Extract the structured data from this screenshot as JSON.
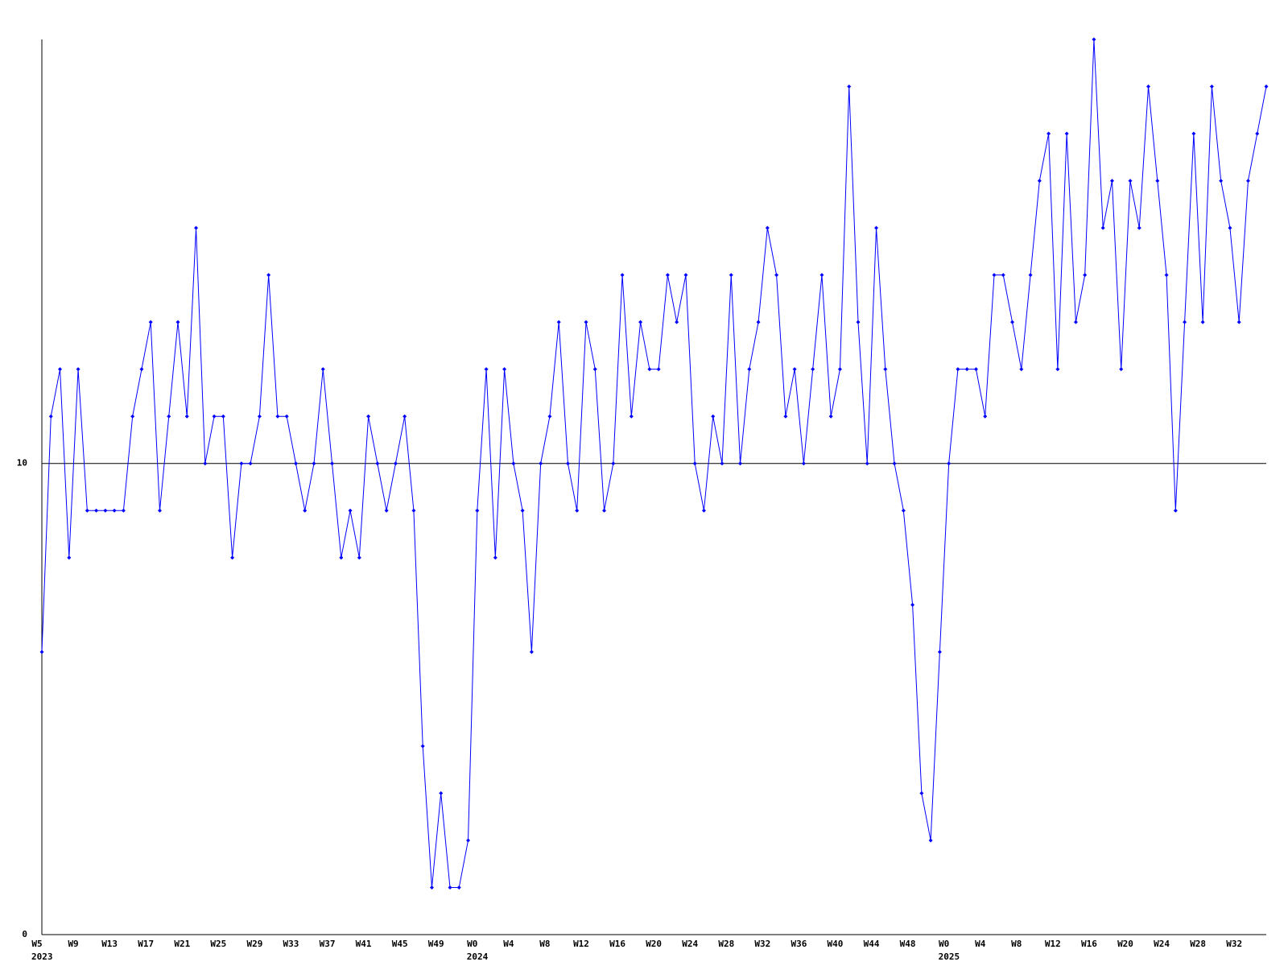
{
  "chart_data": {
    "type": "line",
    "categories": [
      "W5",
      null,
      null,
      null,
      "W9",
      null,
      null,
      null,
      "W13",
      null,
      null,
      null,
      "W17",
      null,
      null,
      null,
      "W21",
      null,
      null,
      null,
      "W25",
      null,
      null,
      null,
      "W29",
      null,
      null,
      null,
      "W33",
      null,
      null,
      null,
      "W37",
      null,
      null,
      null,
      "W41",
      null,
      null,
      null,
      "W45",
      null,
      null,
      null,
      "W49",
      null,
      null,
      null,
      "W0",
      null,
      null,
      null,
      "W4",
      null,
      null,
      null,
      "W8",
      null,
      null,
      null,
      "W12",
      null,
      null,
      null,
      "W16",
      null,
      null,
      null,
      "W20",
      null,
      null,
      null,
      "W24",
      null,
      null,
      null,
      "W28",
      null,
      null,
      null,
      "W32",
      null,
      null,
      null,
      "W36",
      null,
      null,
      null,
      "W40",
      null,
      null,
      null,
      "W44",
      null,
      null,
      null,
      "W48",
      null,
      null,
      null,
      "W0",
      null,
      null,
      null,
      "W4",
      null,
      null,
      null,
      "W8",
      null,
      null,
      null,
      "W12",
      null,
      null,
      null,
      "W16",
      null,
      null,
      null,
      "W20",
      null,
      null,
      null,
      "W24",
      null,
      null,
      null,
      "W28",
      null,
      null,
      null,
      "W32",
      null,
      null,
      null
    ],
    "x_group_labels": [
      "2023",
      null,
      null,
      null,
      null,
      null,
      null,
      null,
      null,
      null,
      null,
      null,
      null,
      null,
      null,
      null,
      null,
      null,
      null,
      null,
      null,
      null,
      null,
      null,
      null,
      null,
      null,
      null,
      null,
      null,
      null,
      null,
      null,
      null,
      null,
      null,
      null,
      null,
      null,
      null,
      null,
      null,
      null,
      null,
      null,
      null,
      null,
      null,
      "2024",
      null,
      null,
      null,
      null,
      null,
      null,
      null,
      null,
      null,
      null,
      null,
      null,
      null,
      null,
      null,
      null,
      null,
      null,
      null,
      null,
      null,
      null,
      null,
      null,
      null,
      null,
      null,
      null,
      null,
      null,
      null,
      null,
      null,
      null,
      null,
      null,
      null,
      null,
      null,
      null,
      null,
      null,
      null,
      null,
      null,
      null,
      null,
      null,
      null,
      null,
      null,
      "2025",
      null,
      null,
      null,
      null,
      null,
      null,
      null,
      null,
      null,
      null,
      null,
      null,
      null,
      null,
      null,
      null,
      null,
      null,
      null,
      null,
      null,
      null,
      null,
      null,
      null,
      null,
      null,
      null,
      null,
      null,
      null,
      null,
      null,
      null,
      null
    ],
    "series": [
      {
        "color": "#0000ff",
        "values": [
          6,
          11,
          12,
          8,
          12,
          9,
          9,
          9,
          9,
          9,
          11,
          12,
          13,
          9,
          11,
          13,
          11,
          15,
          10,
          11,
          11,
          8,
          10,
          10,
          11,
          14,
          11,
          11,
          10,
          9,
          10,
          12,
          10,
          8,
          9,
          8,
          11,
          10,
          9,
          10,
          11,
          9,
          4,
          1,
          3,
          1,
          1,
          2,
          9,
          12,
          8,
          12,
          10,
          9,
          6,
          10,
          11,
          13,
          10,
          9,
          13,
          12,
          9,
          10,
          14,
          11,
          13,
          12,
          12,
          14,
          13,
          14,
          10,
          9,
          11,
          10,
          14,
          10,
          12,
          13,
          15,
          14,
          11,
          12,
          10,
          12,
          14,
          11,
          12,
          18,
          13,
          10,
          15,
          12,
          10,
          9,
          7,
          3,
          2,
          6,
          10,
          12,
          12,
          12,
          11,
          14,
          14,
          13,
          12,
          14,
          16,
          17,
          12,
          17,
          13,
          14,
          19,
          15,
          16,
          12,
          16,
          15,
          18,
          16,
          14,
          9,
          13,
          17,
          13,
          18,
          16,
          15,
          13,
          16,
          17,
          18
        ]
      }
    ],
    "ylim": [
      0,
      19
    ],
    "yticks": [
      0,
      10
    ],
    "grid": true
  }
}
